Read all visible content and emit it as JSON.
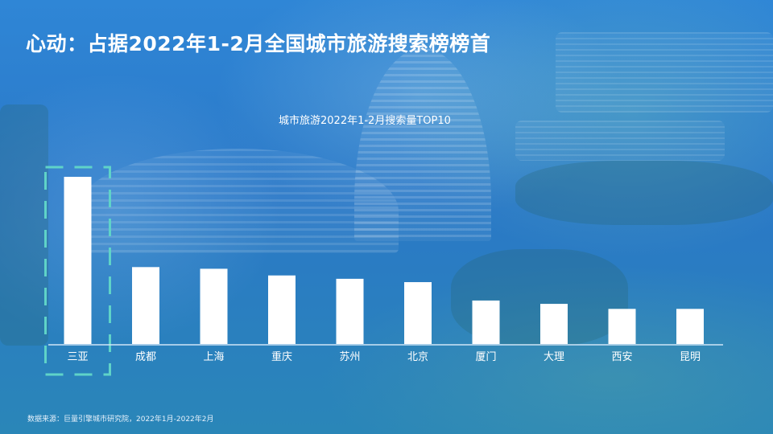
{
  "page": {
    "title": "心动：占据2022年1-2月全国城市旅游搜索榜榜首",
    "source_note": "数据来源：巨量引擎城市研究院，2022年1月-2022年2月"
  },
  "colors": {
    "bar": "#ffffff",
    "axis": "#cfe6f7",
    "highlight_frame": "#5fd3c8",
    "label": "#ffffff"
  },
  "chart_data": {
    "type": "bar",
    "title": "城市旅游2022年1-2月搜索量TOP10",
    "categories": [
      "三亚",
      "成都",
      "上海",
      "重庆",
      "苏州",
      "北京",
      "厦门",
      "大理",
      "西安",
      "昆明"
    ],
    "values": [
      100,
      46,
      45,
      41,
      39,
      37,
      26,
      24,
      21,
      21
    ],
    "ylim": [
      0,
      100
    ],
    "highlight": "三亚",
    "grid": false,
    "legend": "none"
  }
}
